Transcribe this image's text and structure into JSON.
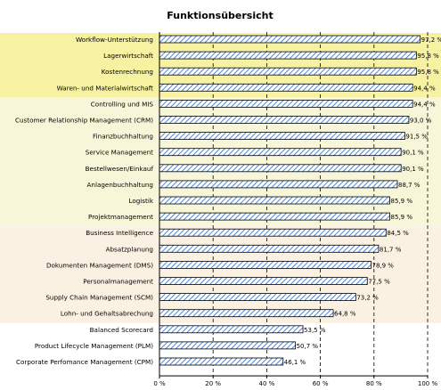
{
  "chart_data": {
    "type": "bar",
    "orientation": "horizontal",
    "title": "Funktionsübersicht",
    "xlim": [
      0,
      100
    ],
    "x_ticks": [
      "0 %",
      "20 %",
      "40 %",
      "60 %",
      "80 %",
      "100 %"
    ],
    "grid": "vertical dashed lines at 20 % steps",
    "bar_style": "blue diagonal hatch",
    "colors": {
      "band_yellow": "#f6f2a2",
      "band_light_yellow": "#f8f6d8",
      "band_peach": "#fbf1e3",
      "bar_hatch": "#4f86d6"
    },
    "categories": [
      "Workflow-Unterstützung",
      "Lagerwirtschaft",
      "Kostenrechnung",
      "Waren- und Materialwirtschaft",
      "Controlling und MIS",
      "Customer Relationship Management (CRM)",
      "Finanzbuchhaltung",
      "Service Management",
      "Bestellwesen/Einkauf",
      "Anlagenbuchhaltung",
      "Logistik",
      "Projektmanagement",
      "Business Intelligence",
      "Absatzplanung",
      "Dokumenten Management (DMS)",
      "Personalmanagement",
      "Supply Chain Management (SCM)",
      "Lohn- und Gehaltsabrechung",
      "Balanced Scorecard",
      "Product Lifecycle Management (PLM)",
      "Corporate Perfomance Management (CPM)"
    ],
    "values": [
      97.2,
      95.8,
      95.8,
      94.4,
      94.4,
      93.0,
      91.5,
      90.1,
      90.1,
      88.7,
      85.9,
      85.9,
      84.5,
      81.7,
      78.9,
      77.5,
      73.2,
      64.8,
      53.5,
      50.7,
      46.1
    ],
    "labels": [
      "97,2 %",
      "95,8 %",
      "95,8 %",
      "94,4 %",
      "94,4 %",
      "93,0 %",
      "91,5 %",
      "90,1 %",
      "90,1 %",
      "88,7 %",
      "85,9 %",
      "85,9 %",
      "84,5 %",
      "81,7 %",
      "78,9 %",
      "77,5 %",
      "73,2 %",
      "64,8 %",
      "53,5 %",
      "50,7 %",
      "46,1 %"
    ],
    "bands": [
      {
        "from": 0,
        "to": 3,
        "color": "band_yellow"
      },
      {
        "from": 4,
        "to": 11,
        "color": "band_light_yellow"
      },
      {
        "from": 12,
        "to": 17,
        "color": "band_peach"
      }
    ]
  }
}
